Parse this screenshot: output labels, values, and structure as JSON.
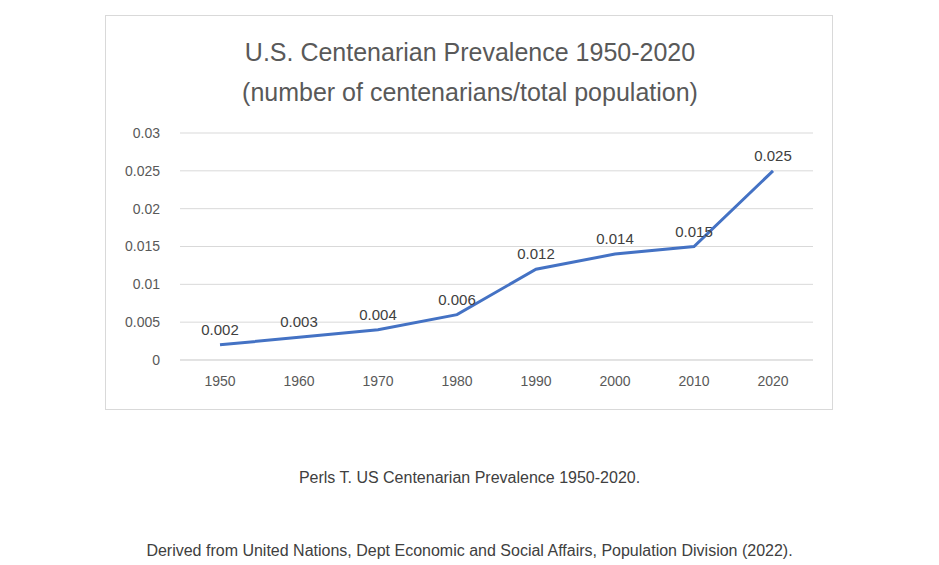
{
  "chart_data": {
    "type": "line",
    "title": "U.S. Centenarian Prevalence 1950-2020",
    "subtitle": "(number of centenarians/total population)",
    "categories": [
      "1950",
      "1960",
      "1970",
      "1980",
      "1990",
      "2000",
      "2010",
      "2020"
    ],
    "values": [
      0.002,
      0.003,
      0.004,
      0.006,
      0.012,
      0.014,
      0.015,
      0.025
    ],
    "color": "#4472c4",
    "ylim": [
      0,
      0.03
    ],
    "yticks": [
      0,
      0.005,
      0.01,
      0.015,
      0.02,
      0.025,
      0.03
    ],
    "grid": true,
    "data_labels": true,
    "annotations": [
      "Perls T. US Centenarian Prevalence 1950-2020.",
      "Derived from United Nations, Dept Economic and Social Affairs, Population Division (2022)."
    ]
  }
}
